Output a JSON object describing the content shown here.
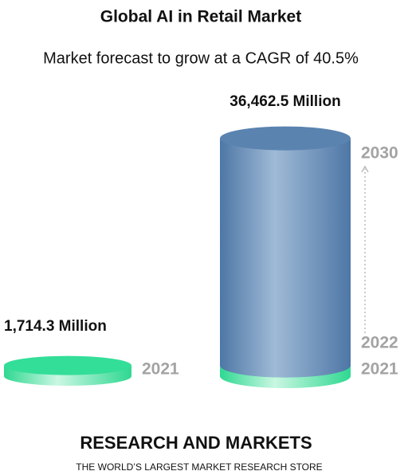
{
  "chart_data": {
    "type": "cylinder",
    "title": "Global AI in Retail Market",
    "subtitle": "Market forecast to grow at a CAGR of 40.5%",
    "values": [
      1714.3,
      36462.5
    ],
    "value_labels": [
      "1,714.3 Million",
      "36,462.5 Million"
    ],
    "colors": [
      "#33de98",
      "#5a83b0"
    ],
    "year_labels": [
      [
        "2021"
      ],
      [
        "2021",
        "2022",
        "2030"
      ]
    ]
  },
  "footer": {
    "brand": "RESEARCH AND MARKETS",
    "tagline": "THE WORLD’S LARGEST MARKET RESEARCH STORE"
  }
}
